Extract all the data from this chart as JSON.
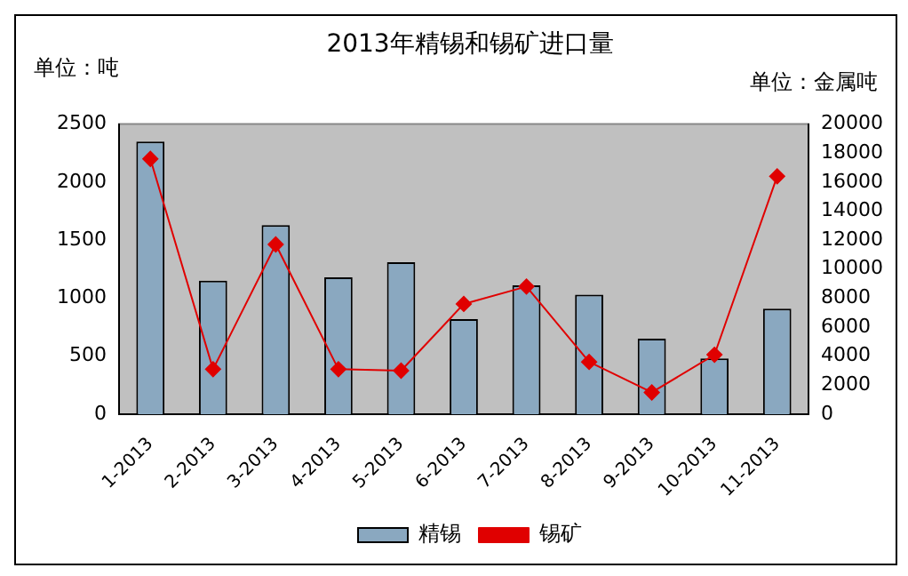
{
  "chart_data": {
    "type": "bar",
    "title": "2013年精锡和锡矿进口量",
    "ylabel": "单位：吨",
    "y2label": "单位：金属吨",
    "categories": [
      "1-2013",
      "2-2013",
      "3-2013",
      "4-2013",
      "5-2013",
      "6-2013",
      "7-2013",
      "8-2013",
      "9-2013",
      "10-2013",
      "11-2013"
    ],
    "series": [
      {
        "name": "精锡",
        "color": "#8aa8c0",
        "values": [
          2350,
          1150,
          1630,
          1180,
          1310,
          820,
          1110,
          1030,
          650,
          480,
          910
        ]
      },
      {
        "name": "锡矿",
        "type": "line",
        "axis": "y2",
        "color": "#e00000",
        "marker": "diamond",
        "values": [
          17600,
          3100,
          11700,
          3100,
          3000,
          7600,
          8800,
          3600,
          1500,
          4100,
          16400
        ]
      }
    ],
    "ylim": [
      0,
      2500
    ],
    "yticks": [
      0,
      500,
      1000,
      1500,
      2000,
      2500
    ],
    "y2lim": [
      0,
      20000
    ],
    "y2ticks": [
      0,
      2000,
      4000,
      6000,
      8000,
      10000,
      12000,
      14000,
      16000,
      18000,
      20000
    ],
    "grid": false,
    "legend": "bottom"
  }
}
